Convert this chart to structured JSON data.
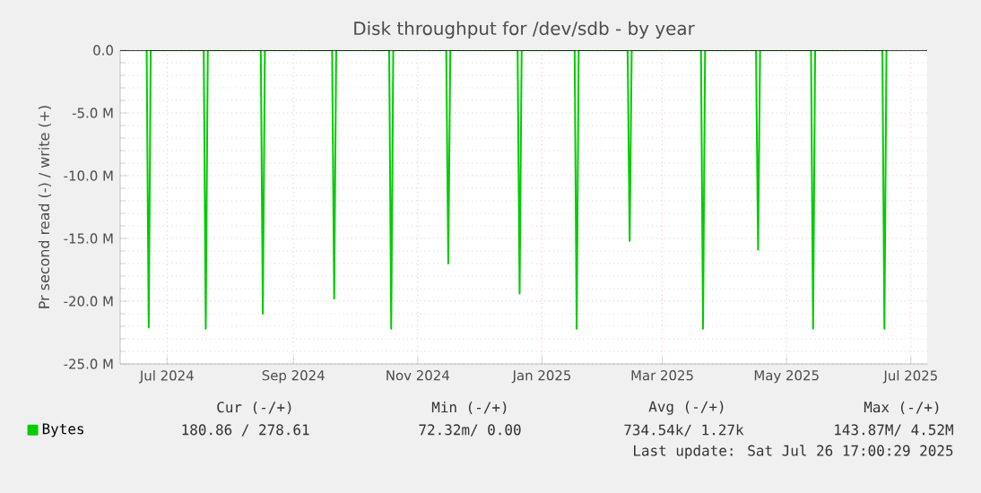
{
  "chart_data": {
    "type": "line",
    "title": "Disk throughput for /dev/sdb - by year",
    "ylabel": "Pr second read (-) / write (+)",
    "x": [
      "2024-06-21",
      "2024-06-22",
      "2024-06-23",
      "2024-07-19",
      "2024-07-20",
      "2024-07-21",
      "2024-08-16",
      "2024-08-17",
      "2024-08-18",
      "2024-09-20",
      "2024-09-21",
      "2024-09-22",
      "2024-10-18",
      "2024-10-19",
      "2024-10-20",
      "2024-11-15",
      "2024-11-16",
      "2024-11-17",
      "2024-12-20",
      "2024-12-21",
      "2024-12-22",
      "2025-01-17",
      "2025-01-18",
      "2025-01-19",
      "2025-02-12",
      "2025-02-13",
      "2025-02-14",
      "2025-03-20",
      "2025-03-21",
      "2025-03-22",
      "2025-04-16",
      "2025-04-17",
      "2025-04-18",
      "2025-05-13",
      "2025-05-14",
      "2025-05-15",
      "2025-06-17",
      "2025-06-18",
      "2025-06-19"
    ],
    "series": [
      {
        "name": "Bytes",
        "color": "#00cc00",
        "values": [
          0,
          -22.1,
          0,
          0,
          -22.2,
          0,
          0,
          -21.0,
          0,
          0,
          -19.8,
          0,
          0,
          -22.2,
          0,
          0,
          -17.0,
          0,
          0,
          -19.4,
          0,
          0,
          -22.2,
          0,
          0,
          -15.2,
          0,
          0,
          -22.2,
          0,
          0,
          -15.9,
          0,
          0,
          -22.2,
          0,
          0,
          -22.2,
          0
        ]
      }
    ],
    "xlim": [
      "2024-06-08",
      "2025-07-09"
    ],
    "xticks": [
      {
        "value": "2024-07-01",
        "label": "Jul 2024"
      },
      {
        "value": "2024-09-01",
        "label": "Sep 2024"
      },
      {
        "value": "2024-11-01",
        "label": "Nov 2024"
      },
      {
        "value": "2025-01-01",
        "label": "Jan 2025"
      },
      {
        "value": "2025-03-01",
        "label": "Mar 2025"
      },
      {
        "value": "2025-05-01",
        "label": "May 2025"
      },
      {
        "value": "2025-07-01",
        "label": "Jul 2025"
      }
    ],
    "ylim": [
      -25,
      0
    ],
    "yticks": [
      {
        "value": -25,
        "label": "-25.0 M"
      },
      {
        "value": -20,
        "label": "-20.0 M"
      },
      {
        "value": -15,
        "label": "-15.0 M"
      },
      {
        "value": -10,
        "label": "-10.0 M"
      },
      {
        "value": -5,
        "label": "-5.0 M"
      },
      {
        "value": 0,
        "label": "0.0"
      }
    ],
    "grid": true,
    "legend": "bottom left",
    "annotations": [
      "Cur (-/+)",
      "Min (-/+)",
      "Avg (-/+)",
      "Max (-/+)",
      "180.86 / 278.61",
      "72.32m/ 0.00",
      "734.54k/ 1.27k",
      "143.87M/ 4.52M",
      "Last update: Sat Jul 26 17:00:29 2025"
    ]
  }
}
